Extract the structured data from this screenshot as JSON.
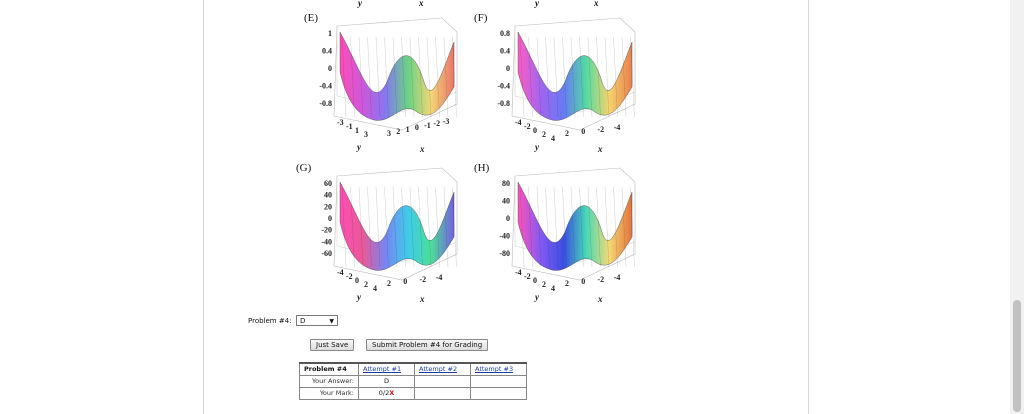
{
  "top_labels": {
    "y_left": "y",
    "x_left": "x",
    "y_right": "y",
    "x_right": "x"
  },
  "plots": [
    {
      "label": "(E)",
      "z_ticks": [
        "1",
        "0.4",
        "0",
        "-0.4",
        "-0.8"
      ],
      "y_ticks": [
        "-3",
        "-1",
        "1",
        "3"
      ],
      "x_ticks": [
        "3",
        "2",
        "1",
        "0",
        "-1",
        "-2",
        "-3"
      ],
      "ylabel": "y",
      "xlabel": "x",
      "palette": [
        "#ff3fb1",
        "#c94ad9",
        "#7b6df0",
        "#5fd07a",
        "#f2d36a",
        "#e86a5c"
      ]
    },
    {
      "label": "(F)",
      "z_ticks": [
        "0.8",
        "0.4",
        "0",
        "-0.4",
        "-0.8"
      ],
      "y_ticks": [
        "-4",
        "-2",
        "0",
        "2",
        "4"
      ],
      "x_ticks": [
        "2",
        "0",
        "-2",
        "-4"
      ],
      "ylabel": "y",
      "xlabel": "x",
      "palette": [
        "#ff4fc0",
        "#9a58ee",
        "#5b6ff5",
        "#46d89a",
        "#f4d060",
        "#e8753e"
      ]
    },
    {
      "label": "(G)",
      "z_ticks": [
        "60",
        "40",
        "20",
        "0",
        "-20",
        "-40",
        "-60"
      ],
      "y_ticks": [
        "-4",
        "-2",
        "0",
        "2",
        "4"
      ],
      "x_ticks": [
        "2",
        "0",
        "-2",
        "-4"
      ],
      "ylabel": "y",
      "xlabel": "x",
      "palette": [
        "#ff3fb1",
        "#e84b8f",
        "#6a7cf2",
        "#30c7e8",
        "#3ddc8f",
        "#6a52e0"
      ]
    },
    {
      "label": "(H)",
      "z_ticks": [
        "80",
        "40",
        "0",
        "-40",
        "-80"
      ],
      "y_ticks": [
        "-4",
        "-2",
        "0",
        "2",
        "4"
      ],
      "x_ticks": [
        "2",
        "0",
        "-2",
        "-4"
      ],
      "ylabel": "y",
      "xlabel": "x",
      "palette": [
        "#ff43b5",
        "#7a4cf2",
        "#2a3fe0",
        "#38d6b0",
        "#f3d769",
        "#e4652d"
      ]
    }
  ],
  "problem": {
    "label": "Problem #4:",
    "selected": "D"
  },
  "buttons": {
    "just_save": "Just Save",
    "submit": "Submit Problem #4 for Grading"
  },
  "attempts": {
    "header": [
      "Problem #4",
      "Attempt #1",
      "Attempt #2",
      "Attempt #3"
    ],
    "answer_label": "Your Answer:",
    "answer_values": [
      "D",
      "",
      ""
    ],
    "mark_label": "Your Mark:",
    "mark_values": [
      "0/2",
      "",
      ""
    ],
    "mark_symbol": "X"
  }
}
